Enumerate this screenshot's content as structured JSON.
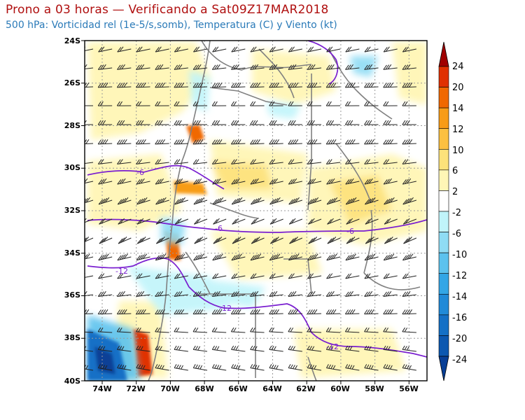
{
  "title": "Prono a 03 horas — Verificando a Sat09Z17MAR2018",
  "subtitle": "500 hPa: Vorticidad rel (1e-5/s,somb), Temperatura (C) y Viento (kt)",
  "map": {
    "lat_labels": [
      "24S",
      "26S",
      "28S",
      "30S",
      "32S",
      "34S",
      "36S",
      "38S",
      "40S"
    ],
    "lon_labels": [
      "74W",
      "72W",
      "70W",
      "68W",
      "66W",
      "64W",
      "62W",
      "60W",
      "58W",
      "56W"
    ],
    "contour_labels": [
      "-6",
      "-6",
      "-6",
      "-12",
      "-12",
      "-12"
    ],
    "colors": {
      "frame": "#000000",
      "border": "#808080",
      "temperature_contour": "#7a1fd0",
      "wind_barb": "#222222",
      "grid": "#999999"
    }
  },
  "colorbar": {
    "labels": [
      "24",
      "20",
      "14",
      "12",
      "10",
      "6",
      "2",
      "-2",
      "-6",
      "-10",
      "-12",
      "-14",
      "-16",
      "-20",
      "-24"
    ],
    "colors": [
      "#a00000",
      "#e03000",
      "#f06800",
      "#f89c18",
      "#fcc040",
      "#fde27a",
      "#fff6b6",
      "#ffffff",
      "#c0f4fa",
      "#8fdcf4",
      "#5cc2ee",
      "#33a6e6",
      "#208ad8",
      "#1470c6",
      "#0c58b0",
      "#083f96"
    ]
  }
}
